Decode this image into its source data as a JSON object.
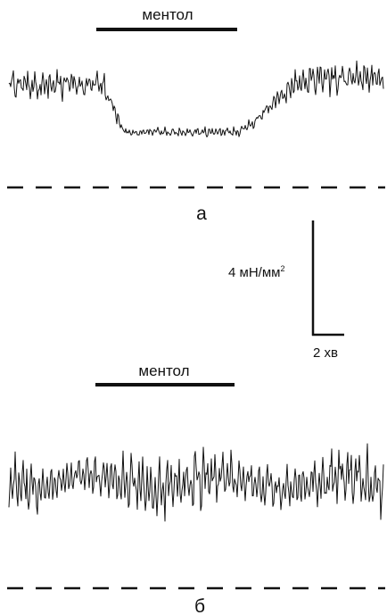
{
  "panel_a": {
    "stimulus_label": "ментол",
    "panel_label": "а"
  },
  "scale_bar": {
    "force_label": "4 мН/мм",
    "force_superscript": "2",
    "time_label": "2 хв"
  },
  "panel_b": {
    "stimulus_label": "ментол",
    "panel_label": "б"
  },
  "colors": {
    "trace": "#111111",
    "background": "#ffffff"
  }
}
